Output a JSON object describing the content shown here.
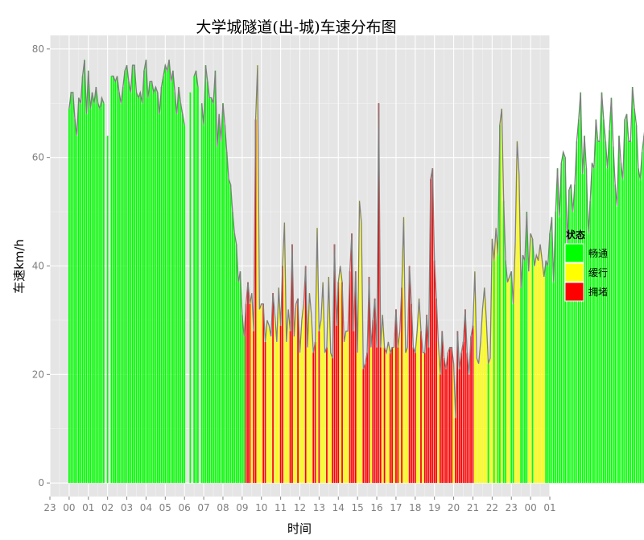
{
  "chart_data": {
    "type": "bar",
    "title": "大学城隧道(出-城)车速分布图",
    "xlabel": "时间",
    "ylabel": "车速km/h",
    "x_ticks": [
      "23",
      "00",
      "01",
      "02",
      "03",
      "04",
      "05",
      "06",
      "07",
      "08",
      "09",
      "10",
      "11",
      "12",
      "13",
      "14",
      "15",
      "16",
      "17",
      "18",
      "19",
      "20",
      "21",
      "22",
      "23",
      "00",
      "01"
    ],
    "y_ticks": [
      "0",
      "20",
      "40",
      "60",
      "80"
    ],
    "xlim": [
      -1,
      25
    ],
    "ylim": [
      -2.5,
      82.5
    ],
    "grid": true,
    "legend": {
      "title": "状态",
      "position": "right",
      "items": [
        {
          "label": "畅通",
          "color": "#00ff00"
        },
        {
          "label": "缓行",
          "color": "#ffff00"
        },
        {
          "label": "拥堵",
          "color": "#ff0000"
        }
      ]
    },
    "status_colors": {
      "smooth": "#00ff00",
      "slow": "#ffff00",
      "jam": "#ff0000"
    },
    "line_color": "#7f7f7f",
    "series": [
      {
        "interval_hours": 0.1,
        "speeds": [
          69,
          72,
          72,
          67,
          64,
          71,
          70,
          75,
          78,
          68,
          76,
          69,
          72,
          70,
          73,
          70,
          69,
          71,
          70,
          0,
          64,
          0,
          75,
          75,
          74,
          75,
          72,
          70,
          73,
          76,
          77,
          74,
          72,
          77,
          77,
          72,
          71,
          72,
          70,
          76,
          78,
          71,
          74,
          74,
          72,
          73,
          72,
          68,
          73,
          75,
          77,
          76,
          78,
          74,
          76,
          72,
          68,
          73,
          70,
          68,
          66,
          0,
          0,
          72,
          0,
          75,
          76,
          73,
          0,
          70,
          66,
          77,
          74,
          71,
          71,
          70,
          76,
          62,
          68,
          63,
          70,
          66,
          61,
          56,
          55,
          50,
          46,
          44,
          37,
          39,
          31,
          27,
          33,
          37,
          33,
          35,
          28,
          67,
          77,
          32,
          33,
          33,
          26,
          30,
          29,
          27,
          35,
          31,
          26,
          36,
          29,
          40,
          48,
          26,
          32,
          28,
          44,
          27,
          33,
          34,
          24,
          30,
          33,
          40,
          25,
          35,
          31,
          24,
          26,
          47,
          28,
          30,
          37,
          24,
          25,
          38,
          24,
          23,
          44,
          29,
          37,
          40,
          37,
          26,
          28,
          28,
          39,
          46,
          28,
          39,
          24,
          52,
          48,
          21,
          22,
          24,
          38,
          25,
          30,
          34,
          25,
          70,
          25,
          31,
          25,
          24,
          26,
          24,
          25,
          25,
          32,
          25,
          28,
          36,
          49,
          24,
          25,
          40,
          33,
          25,
          24,
          28,
          34,
          28,
          24,
          24,
          31,
          25,
          56,
          58,
          41,
          34,
          26,
          20,
          28,
          23,
          21,
          24,
          25,
          25,
          22,
          12,
          28,
          21,
          24,
          26,
          32,
          24,
          20,
          27,
          29,
          39,
          23,
          22,
          26,
          32,
          36,
          30,
          22,
          23,
          45,
          41,
          47,
          42,
          66,
          69,
          52,
          41,
          37,
          38,
          39,
          33,
          44,
          63,
          57,
          36,
          42,
          41,
          50,
          39,
          46,
          45,
          40,
          42,
          41,
          44,
          41,
          38,
          41,
          40,
          46,
          49,
          37,
          50,
          58,
          49,
          59,
          61,
          60,
          44,
          54,
          55,
          50,
          55,
          63,
          67,
          72,
          57,
          64,
          58,
          46,
          52,
          59,
          58,
          67,
          63,
          63,
          72,
          67,
          63,
          58,
          65,
          71,
          62,
          55,
          51,
          64,
          59,
          56,
          67,
          68,
          63,
          63,
          73,
          69,
          66,
          58,
          56,
          61,
          64,
          67,
          62,
          60,
          75,
          62,
          65,
          68,
          68,
          69,
          63,
          71,
          72,
          70,
          48,
          64,
          73,
          70,
          72,
          72,
          73,
          65,
          76,
          70,
          72,
          71,
          66,
          74,
          74,
          55,
          71,
          70,
          68,
          76
        ],
        "status": "ssssssssssssssssssssssssssssssssssssssssssssssssssssssssssssssssssssssssssssssssssssssssssssjjjyjjyyyjjyyyjyyyjjyyyjjyyjyyyjyyyjjyjyyyjyyjjjjyjyyyjjjjyyyjjjjyjjjjjyjyyjjyjjyjyyyjjjjyyjyjjjjjjjyjjjjjjjyjjjjjjjjjjyyyyyyysyysyssyssyyssyyyssssyysyyyyyyssssssssssssssssssssssssssssssssssssssssssssssssssssssssssssssssssssssssssssssssssssssssssssssssssssssssssssssss"
      }
    ]
  }
}
